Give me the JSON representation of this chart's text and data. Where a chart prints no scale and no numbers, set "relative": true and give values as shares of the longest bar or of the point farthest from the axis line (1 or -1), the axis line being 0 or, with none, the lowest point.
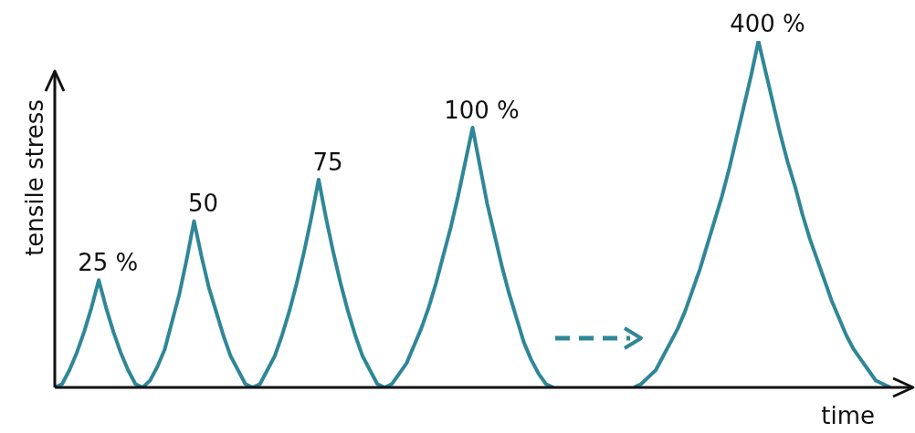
{
  "chart_data": {
    "type": "line",
    "relative": true,
    "xlabel": "time",
    "ylabel": "tensile stress",
    "marker": "none",
    "categories": [
      null,
      null,
      null,
      null,
      null,
      null,
      null,
      null,
      null,
      null,
      null,
      null,
      null,
      null,
      null,
      null,
      null,
      null,
      null,
      null,
      null,
      null,
      null,
      null,
      null,
      null,
      null,
      null,
      null,
      null,
      null,
      null,
      null,
      null,
      null,
      null,
      null,
      null,
      null,
      null,
      null,
      null,
      null,
      null,
      null,
      null,
      null,
      null,
      null,
      null,
      null,
      null,
      null,
      null,
      null,
      null,
      null,
      null,
      null,
      null,
      null,
      null,
      null,
      null,
      null,
      null,
      null,
      null,
      null,
      null,
      null,
      null,
      null,
      null,
      null,
      null,
      null,
      null,
      null,
      null,
      null,
      null,
      null,
      null,
      null,
      null,
      null,
      null,
      null,
      null,
      null,
      null,
      null,
      null,
      null,
      null,
      null,
      null,
      null,
      null,
      null,
      null,
      null,
      null,
      null,
      null,
      null,
      null,
      null,
      null,
      null,
      null,
      null,
      null,
      null
    ],
    "series": [
      {
        "color": "#2f8797",
        "values": [
          0,
          0.01,
          0.05,
          0.1,
          0.16,
          0.23,
          0.31,
          0.23,
          0.16,
          0.1,
          0.05,
          0.01,
          0,
          0.02,
          0.06,
          0.11,
          0.19,
          0.27,
          0.37,
          0.48,
          0.38,
          0.29,
          0.22,
          0.15,
          0.09,
          0.05,
          0.01,
          0,
          0.01,
          0.05,
          0.09,
          0.15,
          0.22,
          0.3,
          0.39,
          0.49,
          0.6,
          0.49,
          0.39,
          0.3,
          0.22,
          0.15,
          0.09,
          0.05,
          0.01,
          0,
          0.01,
          0.04,
          0.07,
          0.12,
          0.17,
          0.23,
          0.3,
          0.38,
          0.46,
          0.55,
          0.65,
          0.75,
          0.64,
          0.53,
          0.44,
          0.35,
          0.27,
          0.2,
          0.13,
          0.08,
          0.04,
          0.01,
          0,
          null,
          null,
          null,
          null,
          null,
          null,
          null,
          null,
          null,
          null,
          null,
          null,
          null,
          null,
          null,
          null,
          null,
          null,
          null,
          null,
          null,
          null,
          null,
          null,
          null,
          null,
          null,
          null,
          null,
          null,
          null,
          null,
          null,
          null,
          null,
          null,
          null,
          null,
          null,
          null,
          null,
          null,
          null,
          null,
          null,
          null
        ]
      },
      {
        "color": "#2f8797",
        "values": [
          null,
          null,
          null,
          null,
          null,
          null,
          null,
          null,
          null,
          null,
          null,
          null,
          null,
          null,
          null,
          null,
          null,
          null,
          null,
          null,
          null,
          null,
          null,
          null,
          null,
          null,
          null,
          null,
          null,
          null,
          null,
          null,
          null,
          null,
          null,
          null,
          null,
          null,
          null,
          null,
          null,
          null,
          null,
          null,
          null,
          null,
          null,
          null,
          null,
          null,
          null,
          null,
          null,
          null,
          null,
          null,
          null,
          null,
          null,
          null,
          null,
          null,
          null,
          null,
          null,
          null,
          null,
          null,
          null,
          null,
          null,
          null,
          null,
          null,
          null,
          null,
          null,
          null,
          null,
          0,
          0.01,
          0.03,
          0.05,
          0.09,
          0.13,
          0.17,
          0.22,
          0.28,
          0.34,
          0.41,
          0.48,
          0.55,
          0.63,
          0.72,
          0.81,
          0.9,
          1,
          0.91,
          0.82,
          0.73,
          0.65,
          0.58,
          0.5,
          0.43,
          0.37,
          0.31,
          0.25,
          0.2,
          0.15,
          0.11,
          0.08,
          0.05,
          0.02,
          0.01,
          0
        ]
      }
    ],
    "annotations": [
      "25 %",
      "50",
      "75",
      "100 %",
      "400 %"
    ]
  }
}
